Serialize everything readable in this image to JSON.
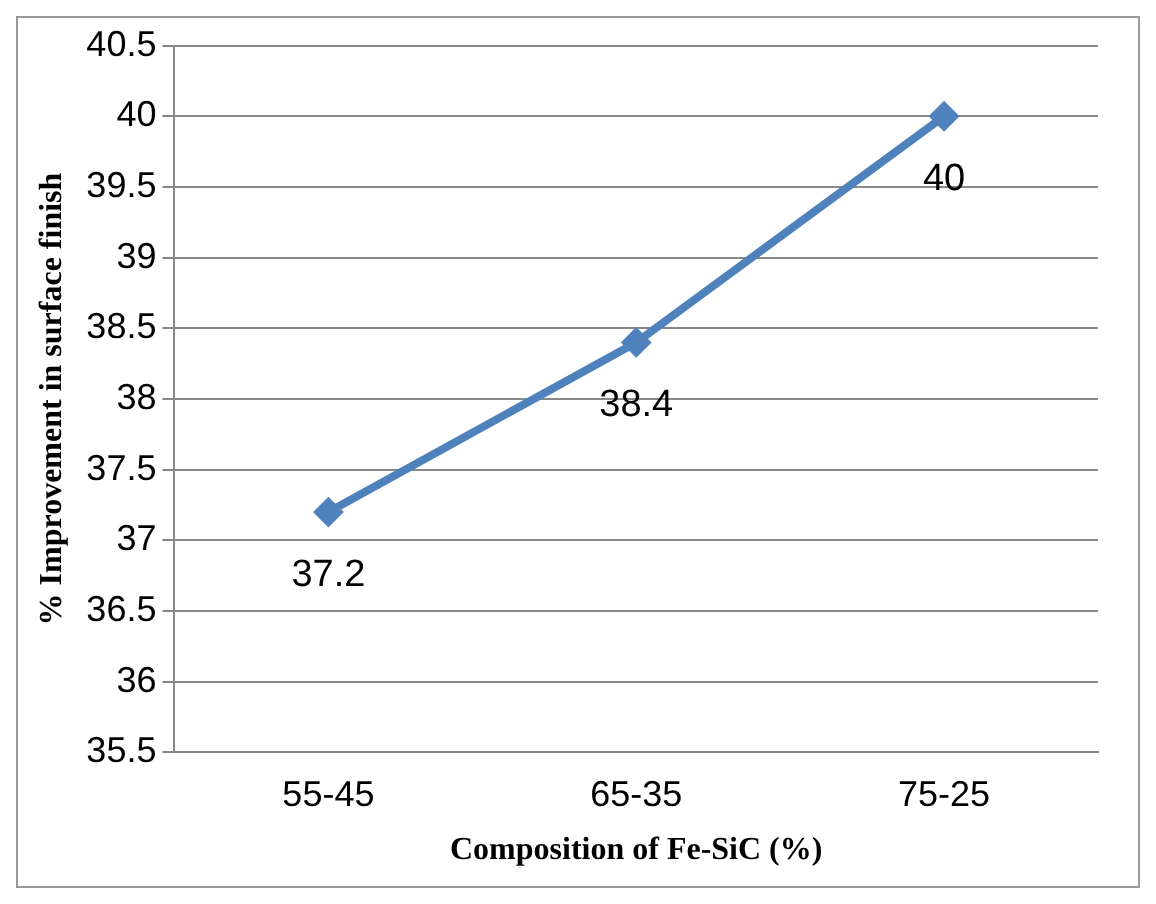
{
  "chart_data": {
    "type": "line",
    "xlabel": "Composition of Fe-SiC (%)",
    "ylabel": "% Improvement in surface finish",
    "categories": [
      "55-45",
      "65-35",
      "75-25"
    ],
    "series": [
      {
        "color": "#4f81bd",
        "values": [
          37.2,
          38.4,
          40
        ]
      }
    ],
    "ylim": [
      35.5,
      40.5
    ],
    "yticks": [
      35.5,
      36,
      36.5,
      37,
      37.5,
      38,
      38.5,
      39,
      39.5,
      40,
      40.5
    ],
    "grid": "y",
    "marker": "diamond",
    "data_labels": true,
    "legend": false
  }
}
